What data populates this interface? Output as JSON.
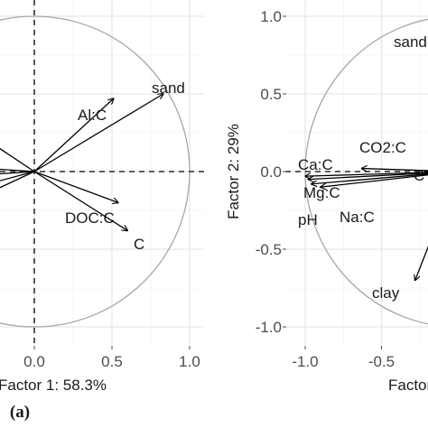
{
  "chart_data": [
    {
      "type": "biplot",
      "panel_label": "(a)",
      "xlabel": "Factor 1: 58.3%",
      "ylabel": "",
      "xlim": [
        -0.23,
        1.1
      ],
      "ylim": [
        -1.06,
        1.1
      ],
      "x_ticks": [
        "0.0",
        "0.5",
        "1.0"
      ],
      "y_ticks": [],
      "grid": true,
      "unit_circle": true,
      "vectors": [
        {
          "label": "sand",
          "x": 0.83,
          "y": 0.5
        },
        {
          "label": "Al:C",
          "x": 0.51,
          "y": 0.47
        },
        {
          "label": "DOC:C",
          "x": 0.54,
          "y": -0.2
        },
        {
          "label": "C",
          "x": 0.6,
          "y": -0.38
        },
        {
          "label": "",
          "x": -0.3,
          "y": 0.2
        },
        {
          "label": "",
          "x": -0.3,
          "y": 0.02
        },
        {
          "label": "",
          "x": -0.3,
          "y": -0.02
        },
        {
          "label": "",
          "x": -0.3,
          "y": -0.08
        },
        {
          "label": "",
          "x": -0.3,
          "y": -0.14
        }
      ]
    },
    {
      "type": "biplot",
      "panel_label": "",
      "xlabel": "Factor",
      "ylabel": "Factor 2: 29%",
      "xlim": [
        -1.18,
        0.8
      ],
      "ylim": [
        -1.06,
        1.1
      ],
      "x_ticks": [
        "-1.0",
        "-0.5"
      ],
      "y_ticks": [
        "1.0",
        "0.5",
        "0.0",
        "-0.5",
        "-1.0"
      ],
      "grid": true,
      "unit_circle": true,
      "vectors": [
        {
          "label": "sand",
          "x": 0.7,
          "y": 0.85
        },
        {
          "label": "Ca:C",
          "x": -1.0,
          "y": -0.03
        },
        {
          "label": "Mg:C",
          "x": -0.98,
          "y": -0.05
        },
        {
          "label": "pH",
          "x": -0.96,
          "y": -0.08
        },
        {
          "label": "Na:C",
          "x": -0.9,
          "y": -0.1
        },
        {
          "label": "CO2:C",
          "x": -0.63,
          "y": 0.02
        },
        {
          "label": "C",
          "x": 0.55,
          "y": 0.01
        },
        {
          "label": "clay",
          "x": -0.28,
          "y": -0.7
        }
      ]
    }
  ]
}
